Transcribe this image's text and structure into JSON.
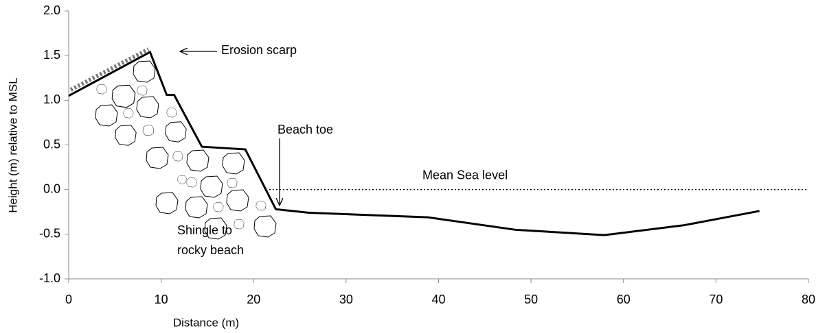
{
  "chart_data": {
    "type": "line",
    "x_label": "Distance (m)",
    "y_label": "Height (m) relative to MSL",
    "x": [
      0,
      8.8,
      10.6,
      11.4,
      14.4,
      19.1,
      22.4,
      26.0,
      38.8,
      48.3,
      57.9,
      66.5,
      74.7
    ],
    "values": [
      1.05,
      1.54,
      1.06,
      1.06,
      0.48,
      0.45,
      -0.22,
      -0.26,
      -0.31,
      -0.45,
      -0.51,
      -0.4,
      -0.24
    ],
    "color": "#000000",
    "xlim": [
      0,
      80
    ],
    "xticks": [
      0,
      10,
      20,
      30,
      40,
      50,
      60,
      70,
      80
    ],
    "ylim": [
      -1,
      2
    ],
    "yticks": [
      {
        "value": -1,
        "label": "-1.0"
      },
      {
        "value": -0.5,
        "label": "-0.5"
      },
      {
        "value": 0,
        "label": "0.0"
      },
      {
        "value": 0.5,
        "label": "0.5"
      },
      {
        "value": 1,
        "label": "1.0"
      },
      {
        "value": 1.5,
        "label": "1.5"
      },
      {
        "value": 2,
        "label": "2.0"
      }
    ],
    "reference_line": {
      "label": "Mean Sea level",
      "y": 0
    },
    "annotations": [
      "Erosion scarp",
      "Beach toe",
      "Shingle to",
      "rocky beach"
    ]
  }
}
